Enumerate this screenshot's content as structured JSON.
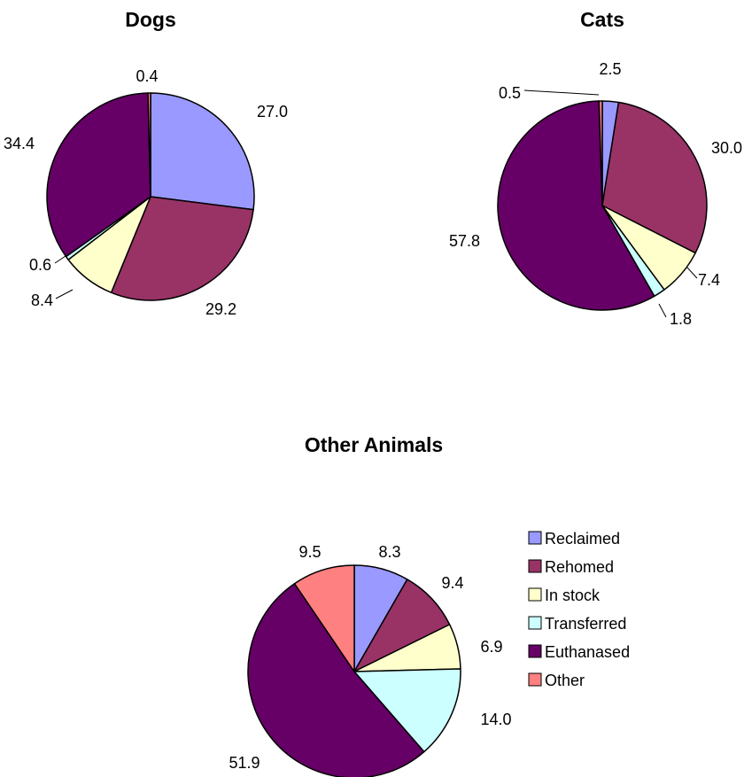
{
  "chart_data": [
    {
      "type": "pie",
      "title": "Dogs",
      "categories": [
        "Reclaimed",
        "Rehomed",
        "In stock",
        "Transferred",
        "Euthanased",
        "Other"
      ],
      "values": [
        27.0,
        29.2,
        8.4,
        0.6,
        34.4,
        0.4
      ],
      "labels": [
        "27.0",
        "29.2",
        "8.4",
        "0.6",
        "34.4",
        "0.4"
      ]
    },
    {
      "type": "pie",
      "title": "Cats",
      "categories": [
        "Reclaimed",
        "Rehomed",
        "In stock",
        "Transferred",
        "Euthanased",
        "Other"
      ],
      "values": [
        2.5,
        30.0,
        7.4,
        1.8,
        57.8,
        0.5
      ],
      "labels": [
        "2.5",
        "30.0",
        "7.4",
        "1.8",
        "57.8",
        "0.5"
      ]
    },
    {
      "type": "pie",
      "title": "Other Animals",
      "categories": [
        "Reclaimed",
        "Rehomed",
        "In stock",
        "Transferred",
        "Euthanased",
        "Other"
      ],
      "values": [
        8.3,
        9.4,
        6.9,
        14.0,
        51.9,
        9.5
      ],
      "labels": [
        "8.3",
        "9.4",
        "6.9",
        "14.0",
        "51.9",
        "9.5"
      ]
    }
  ],
  "legend": {
    "entries": [
      {
        "label": "Reclaimed",
        "color": "#9999ff"
      },
      {
        "label": "Rehomed",
        "color": "#993366"
      },
      {
        "label": "In stock",
        "color": "#ffffcc"
      },
      {
        "label": "Transferred",
        "color": "#ccffff"
      },
      {
        "label": "Euthanased",
        "color": "#660066"
      },
      {
        "label": "Other",
        "color": "#ff8080"
      }
    ]
  }
}
